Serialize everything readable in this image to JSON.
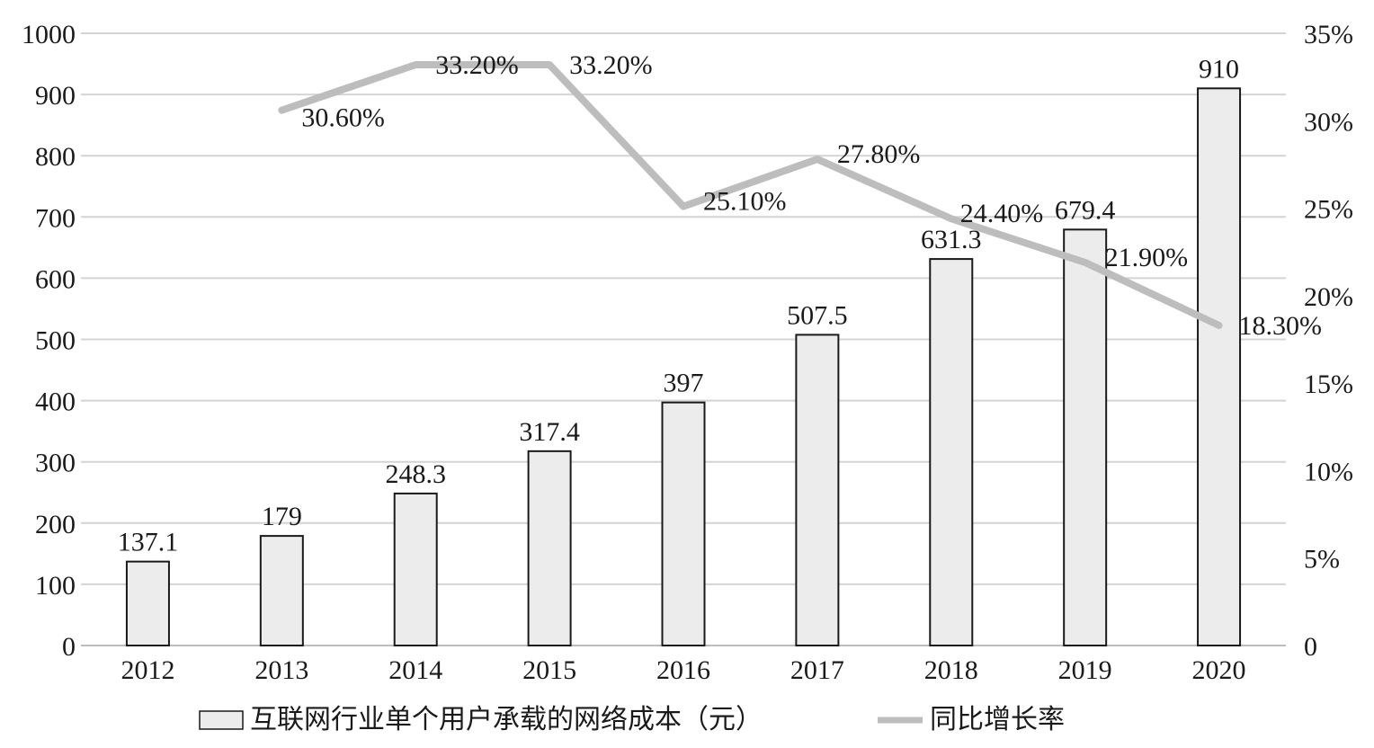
{
  "chart_data": {
    "type": "bar",
    "categories": [
      "2012",
      "2013",
      "2014",
      "2015",
      "2016",
      "2017",
      "2018",
      "2019",
      "2020"
    ],
    "series": [
      {
        "name": "互联网行业单个用户承载的网络成本（元）",
        "type": "bar",
        "axis": "left",
        "values": [
          137.1,
          179,
          248.3,
          317.4,
          397,
          507.5,
          631.3,
          679.4,
          910
        ],
        "labels": [
          "137.1",
          "179",
          "248.3",
          "317.4",
          "397",
          "507.5",
          "631.3",
          "679.4",
          "910"
        ]
      },
      {
        "name": "同比增长率",
        "type": "line",
        "axis": "right",
        "values": [
          null,
          30.6,
          33.2,
          33.2,
          25.1,
          27.8,
          24.4,
          21.9,
          18.3
        ],
        "labels": [
          "",
          "30.60%",
          "33.20%",
          "33.20%",
          "25.10%",
          "27.80%",
          "24.40%",
          "21.90%",
          "18.30%"
        ]
      }
    ],
    "ylim_left": [
      0,
      1000
    ],
    "yticks_left": [
      "0",
      "100",
      "200",
      "300",
      "400",
      "500",
      "600",
      "700",
      "800",
      "900",
      "1000"
    ],
    "ylim_right": [
      0,
      35
    ],
    "yticks_right": [
      "0",
      "5%",
      "10%",
      "15%",
      "20%",
      "25%",
      "30%",
      "35%"
    ],
    "grid": true,
    "legend_position": "bottom",
    "colors": {
      "bar_fill": "#ececec",
      "bar_stroke": "#1a1a1a",
      "line": "#bdbdbd",
      "grid": "#d4d4d4",
      "text": "#1a1a1a"
    }
  }
}
